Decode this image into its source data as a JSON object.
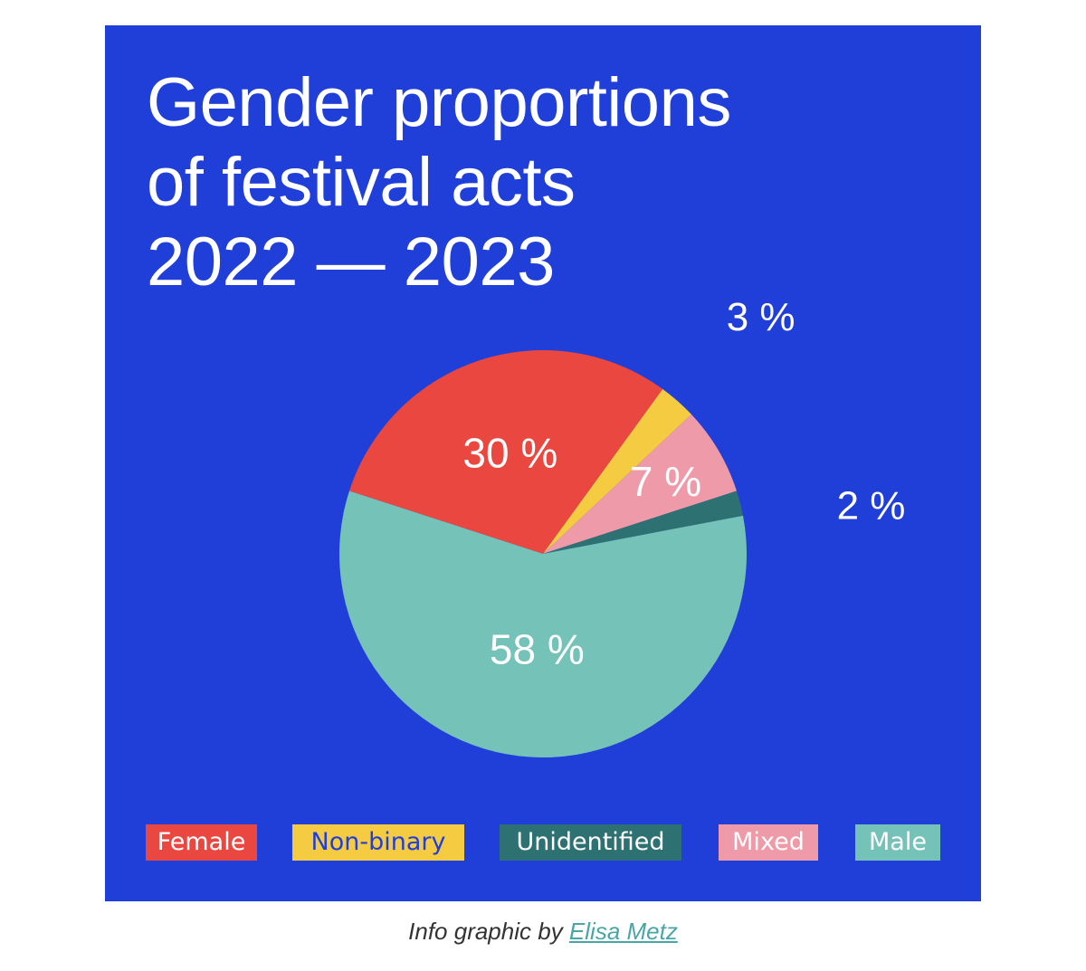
{
  "chart_data": {
    "type": "pie",
    "title": [
      "Gender proportions",
      "of festival acts",
      "2022 — 2023"
    ],
    "slices": [
      {
        "label": "Female",
        "value": 30,
        "data_label": "30 %",
        "color": "#e9473f"
      },
      {
        "label": "Non-binary",
        "value": 3,
        "data_label": "3 %",
        "color": "#f5cc41"
      },
      {
        "label": "Mixed",
        "value": 7,
        "data_label": "7 %",
        "color": "#ef9aa8"
      },
      {
        "label": "Unidentified",
        "value": 2,
        "data_label": "2 %",
        "color": "#2e7172"
      },
      {
        "label": "Male",
        "value": 58,
        "data_label": "58 %",
        "color": "#75c2b9"
      }
    ],
    "legend": [
      {
        "label": "Female",
        "color": "#e9473f",
        "text_color": "#ffffff"
      },
      {
        "label": "Non-binary",
        "color": "#f5cc41",
        "text_color": "#1f3fd8"
      },
      {
        "label": "Unidentified",
        "color": "#2e7172",
        "text_color": "#ffffff"
      },
      {
        "label": "Mixed",
        "color": "#ef9aa8",
        "text_color": "#ffffff"
      },
      {
        "label": "Male",
        "color": "#75c2b9",
        "text_color": "#ffffff"
      }
    ],
    "legend_position": "bottom",
    "background": "#1f3fd8"
  },
  "caption": {
    "prefix": "Info graphic by ",
    "author": "Elisa Metz"
  }
}
